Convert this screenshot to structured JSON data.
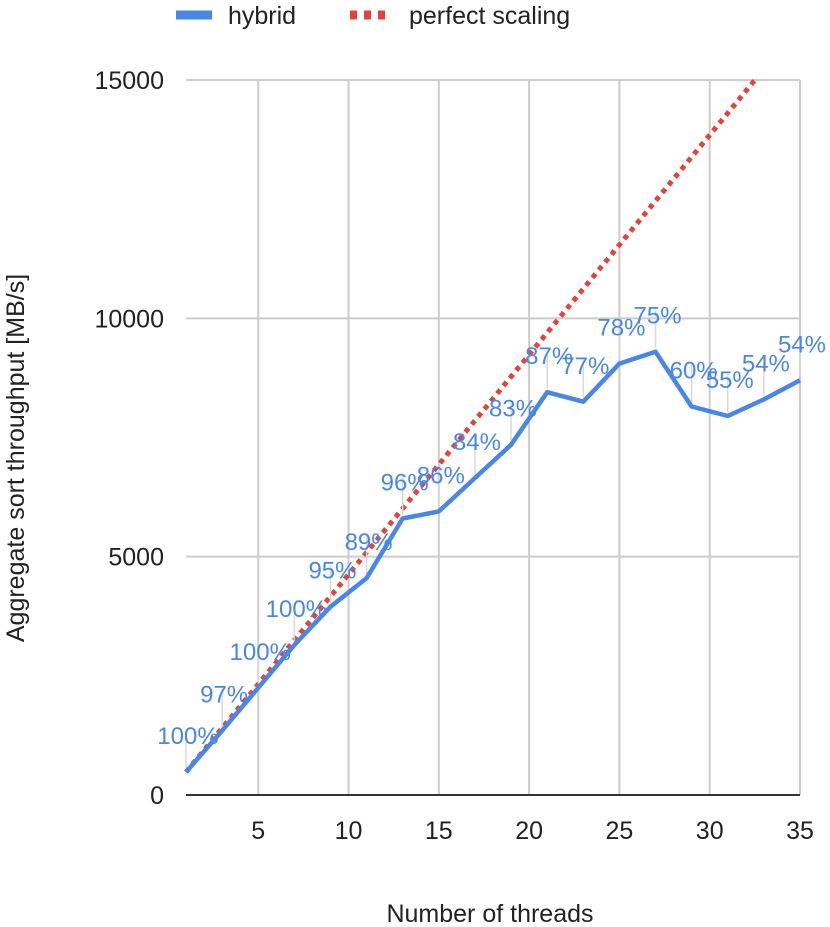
{
  "chart_data": {
    "type": "line",
    "title": "",
    "xlabel": "Number of threads",
    "ylabel": "Aggregate sort throughput [MB/s]",
    "xlim": [
      1,
      35
    ],
    "ylim": [
      0,
      15000
    ],
    "x_ticks": [
      5,
      10,
      15,
      20,
      25,
      30,
      35
    ],
    "y_ticks": [
      0,
      5000,
      10000,
      15000
    ],
    "grid": true,
    "legend_position": "top",
    "series": [
      {
        "name": "hybrid",
        "color": "#4a86e8",
        "style": "solid",
        "x": [
          1,
          3,
          5,
          7,
          9,
          11,
          13,
          15,
          17,
          19,
          21,
          23,
          25,
          27,
          29,
          31,
          33,
          35
        ],
        "y": [
          480,
          1350,
          2250,
          3150,
          3950,
          4550,
          5800,
          5950,
          6650,
          7350,
          8450,
          8250,
          9050,
          9300,
          8150,
          7950,
          8300,
          8700
        ],
        "data_labels": [
          "100%",
          "97%",
          "100%",
          "100%",
          "95%",
          "89%",
          "96%",
          "86%",
          "84%",
          "83%",
          "87%",
          "77%",
          "78%",
          "75%",
          "60%",
          "55%",
          "54%",
          "54%"
        ]
      },
      {
        "name": "perfect scaling",
        "color": "#e0443c",
        "style": "dotted",
        "x": [
          1,
          32.5
        ],
        "y": [
          480,
          15000
        ]
      }
    ]
  }
}
